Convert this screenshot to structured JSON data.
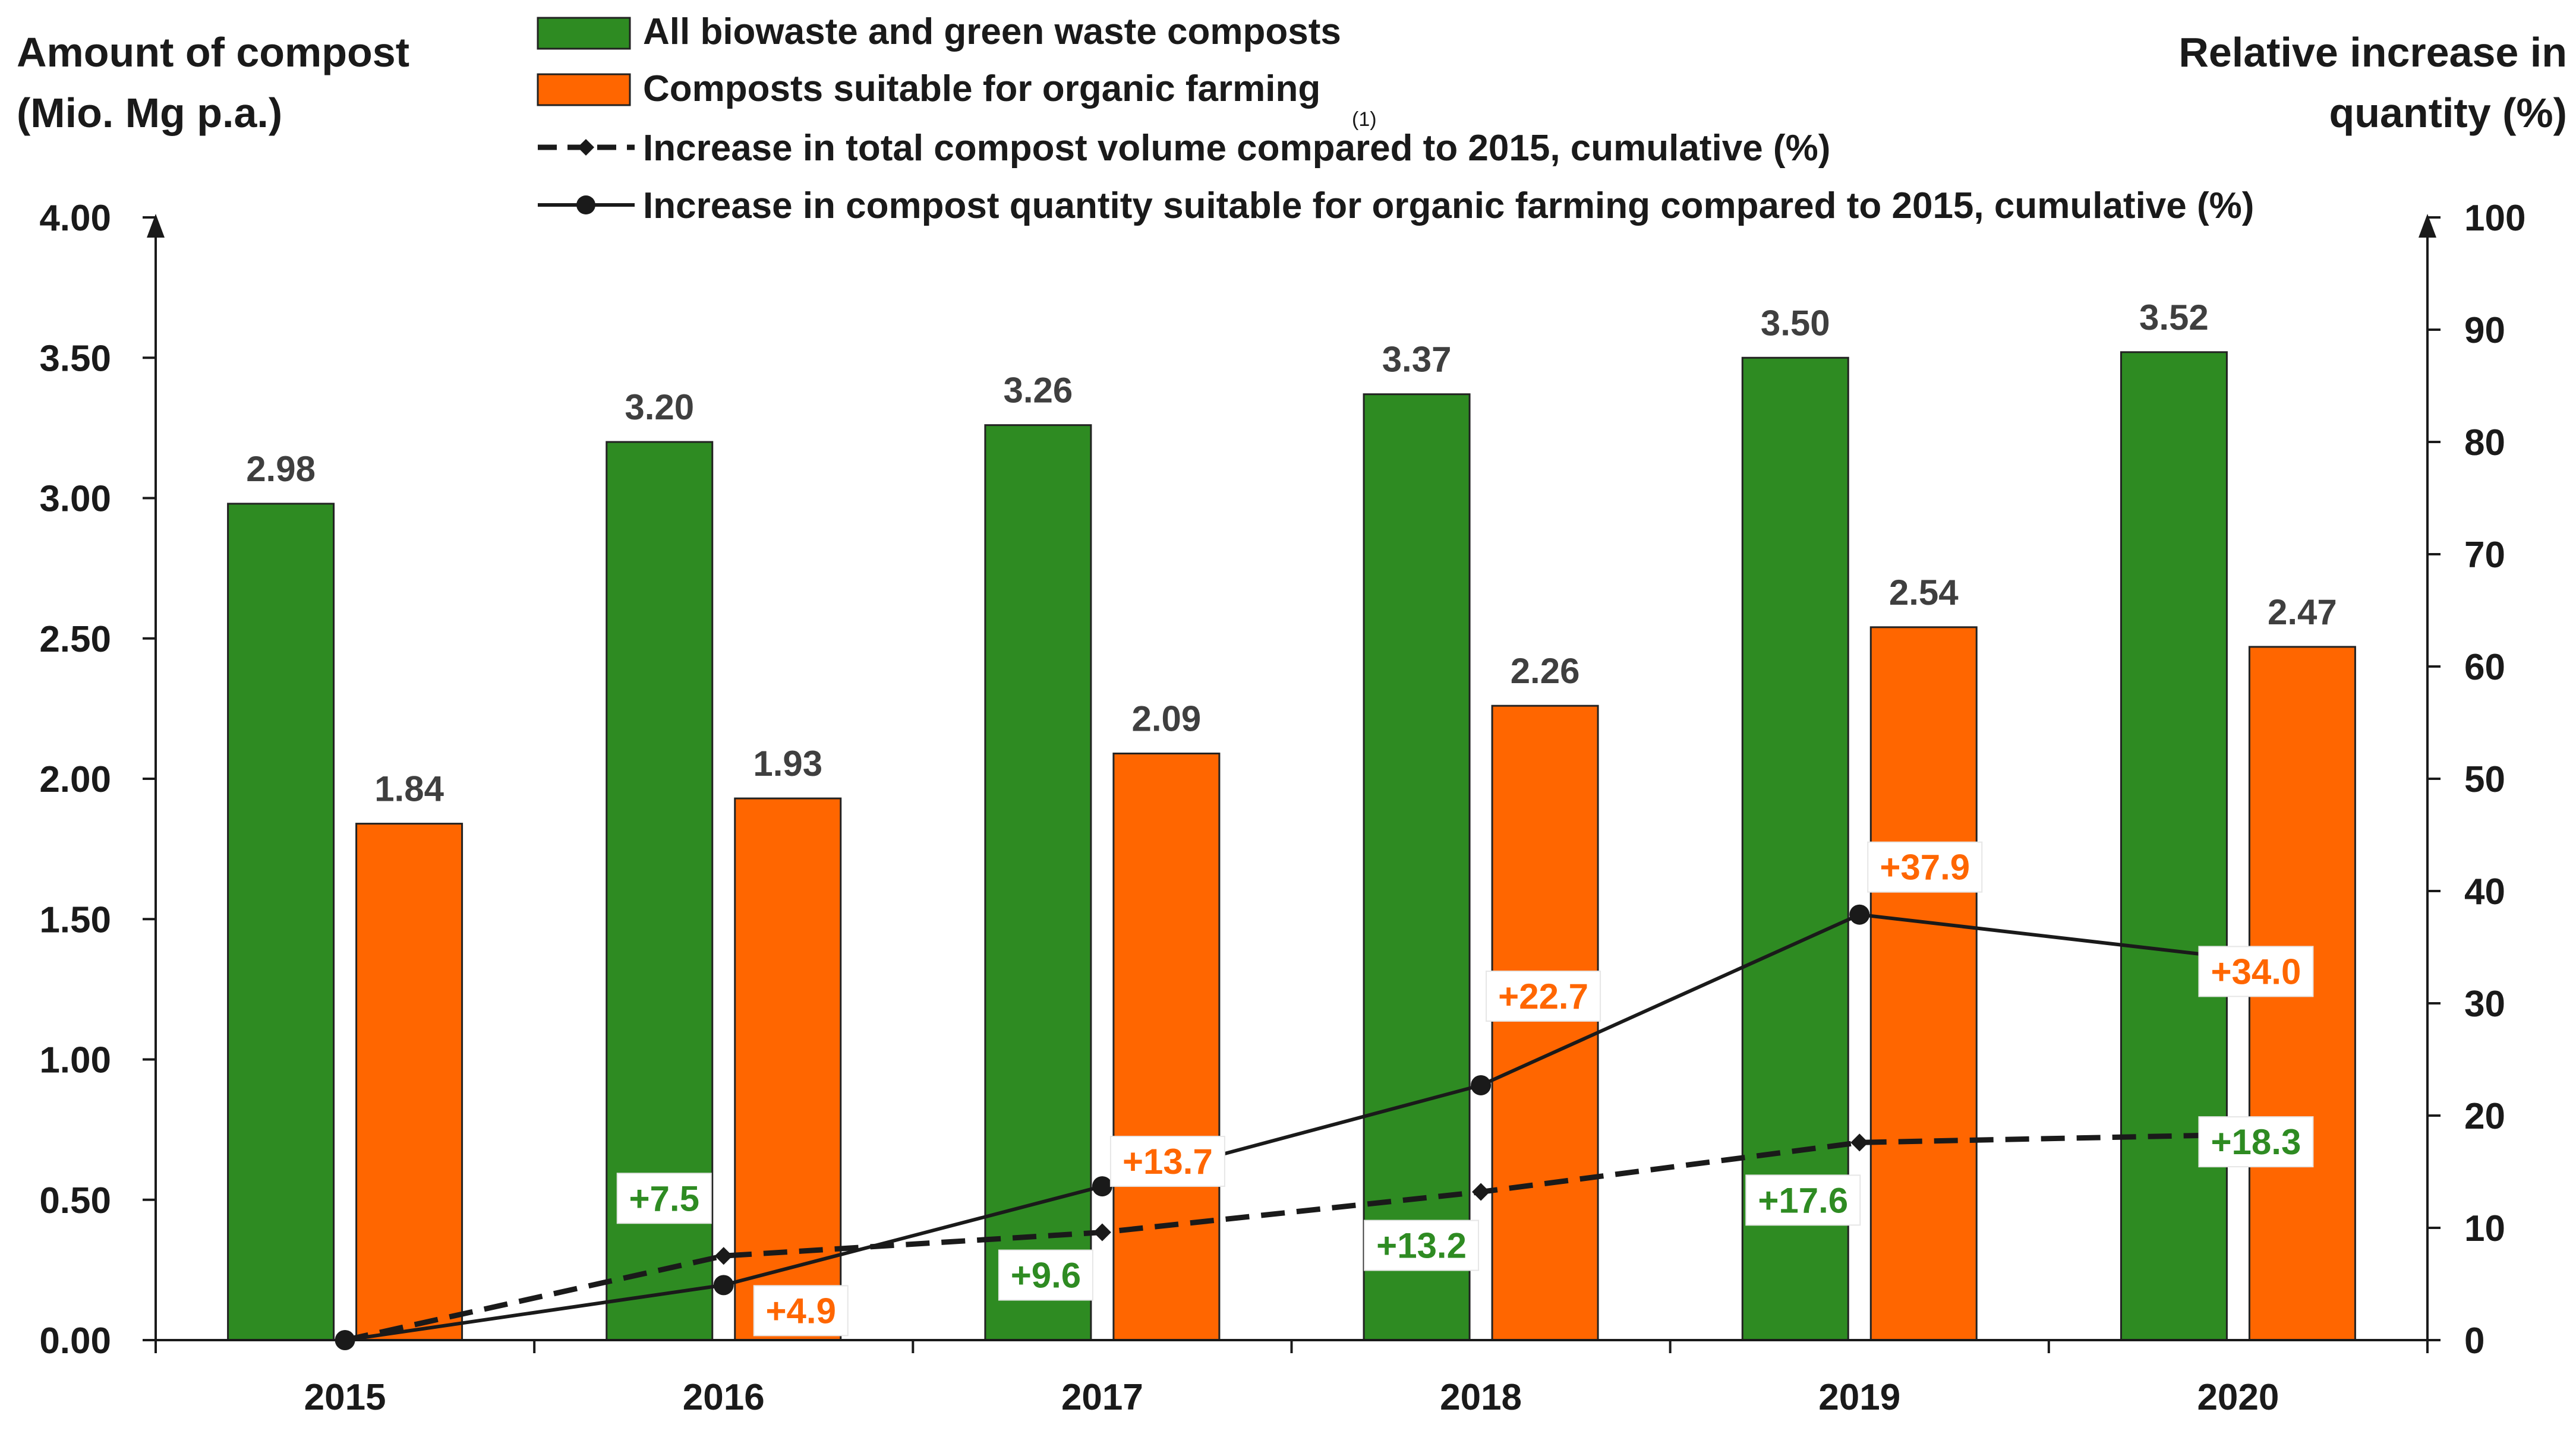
{
  "chart_data": {
    "type": "bar",
    "categories": [
      "2015",
      "2016",
      "2017",
      "2018",
      "2019",
      "2020"
    ],
    "left_axis": {
      "title_lines": [
        "Amount of compost",
        "(Mio. Mg p.a.)"
      ],
      "ylim": [
        0,
        4
      ],
      "ticks": [
        "0.00",
        "0.50",
        "1.00",
        "1.50",
        "2.00",
        "2.50",
        "3.00",
        "3.50",
        "4.00"
      ]
    },
    "right_axis": {
      "title_lines": [
        "Relative increase in",
        "quantity (%)"
      ],
      "ylim": [
        0,
        100
      ],
      "ticks": [
        "0",
        "10",
        "20",
        "30",
        "40",
        "50",
        "60",
        "70",
        "80",
        "90",
        "100"
      ]
    },
    "series": [
      {
        "name": "All biowaste and green waste composts",
        "kind": "bar",
        "axis": "left",
        "color": "#2e8b22",
        "values": [
          2.98,
          3.2,
          3.26,
          3.37,
          3.5,
          3.52
        ],
        "labels": [
          "2.98",
          "3.20",
          "3.26",
          "3.37",
          "3.50",
          "3.52"
        ]
      },
      {
        "name": "Composts suitable for organic farming",
        "footnote": "(1)",
        "kind": "bar",
        "axis": "left",
        "color": "#ff6600",
        "values": [
          1.84,
          1.93,
          2.09,
          2.26,
          2.54,
          2.47
        ],
        "labels": [
          "1.84",
          "1.93",
          "2.09",
          "2.26",
          "2.54",
          "2.47"
        ]
      },
      {
        "name": "Increase in total compost volume compared to 2015, cumulative (%)",
        "kind": "line",
        "style": "dashed",
        "marker": "diamond",
        "axis": "right",
        "color": "#1a1a1a",
        "label_color": "#2e8b22",
        "values": [
          0,
          7.5,
          9.6,
          13.2,
          17.6,
          18.3
        ],
        "labels": [
          "",
          "+7.5",
          "+9.6",
          "+13.2",
          "+17.6",
          "+18.3"
        ]
      },
      {
        "name": "Increase in compost quantity suitable for organic farming compared to 2015, cumulative (%)",
        "kind": "line",
        "style": "solid",
        "marker": "circle",
        "axis": "right",
        "color": "#1a1a1a",
        "label_color": "#ff6600",
        "values": [
          0,
          4.9,
          13.7,
          22.7,
          37.9,
          34.0
        ],
        "labels": [
          "",
          "+4.9",
          "+13.7",
          "+22.7",
          "+37.9",
          "+34.0"
        ]
      }
    ]
  }
}
